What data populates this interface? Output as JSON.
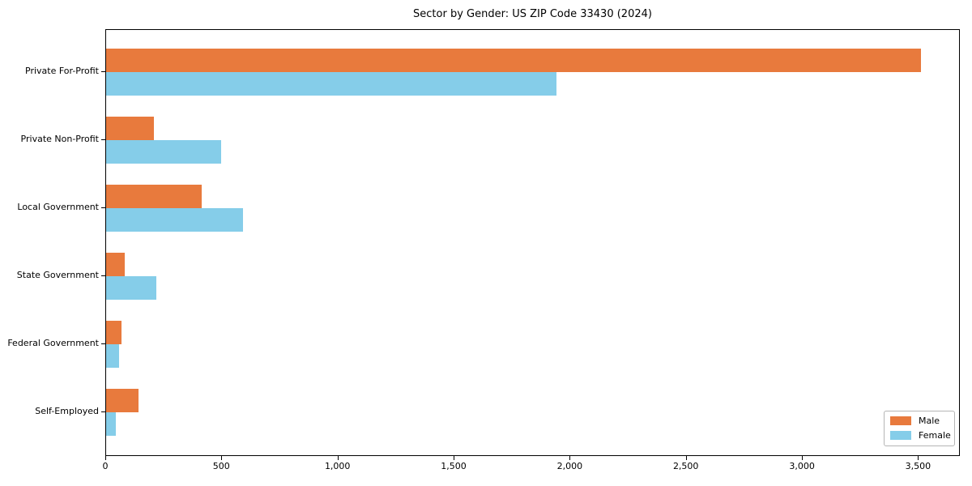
{
  "title": "Sector by Gender: US ZIP Code 33430 (2024)",
  "chart_data": {
    "type": "bar",
    "orientation": "horizontal",
    "title": "Sector by Gender: US ZIP Code 33430 (2024)",
    "categories": [
      "Private For-Profit",
      "Private Non-Profit",
      "Local Government",
      "State Government",
      "Federal Government",
      "Self-Employed"
    ],
    "series": [
      {
        "name": "Male",
        "color": "#e87a3d",
        "values": [
          3510,
          205,
          410,
          80,
          65,
          140
        ]
      },
      {
        "name": "Female",
        "color": "#85cde9",
        "values": [
          1940,
          495,
          590,
          215,
          55,
          40
        ]
      }
    ],
    "xlabel": "",
    "ylabel": "",
    "xlim": [
      0,
      3680
    ],
    "xticks": [
      0,
      500,
      1000,
      1500,
      2000,
      2500,
      3000,
      3500
    ],
    "grid": false,
    "legend_position": "lower right",
    "background": "#ffffff",
    "axis_color": "#000000"
  }
}
